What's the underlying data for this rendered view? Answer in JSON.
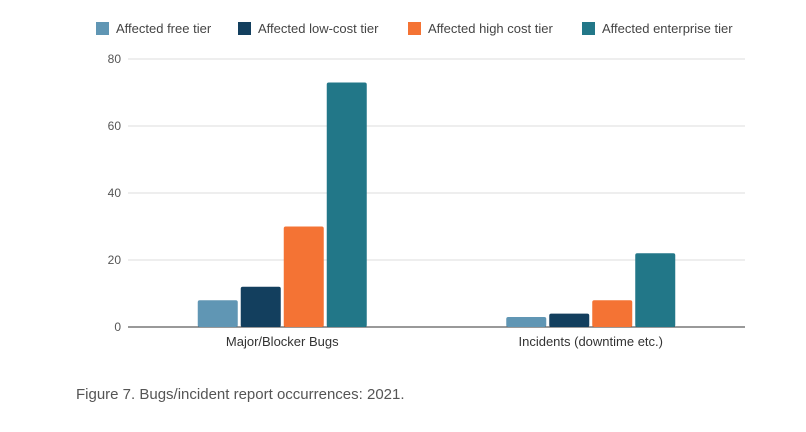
{
  "caption": "Figure 7. Bugs/incident report occurrences: 2021.",
  "chart_data": {
    "type": "bar",
    "title": "",
    "xlabel": "",
    "ylabel": "",
    "categories": [
      "Major/Blocker Bugs",
      "Incidents (downtime etc.)"
    ],
    "series": [
      {
        "name": "Affected free tier",
        "color": "#6096B4",
        "values": [
          8,
          3
        ]
      },
      {
        "name": "Affected low-cost tier",
        "color": "#133F5E",
        "values": [
          12,
          4
        ]
      },
      {
        "name": "Affected high cost tier",
        "color": "#F47334",
        "values": [
          30,
          8
        ]
      },
      {
        "name": "Affected enterprise tier",
        "color": "#227788",
        "values": [
          73,
          22
        ]
      }
    ],
    "ylim": [
      0,
      80
    ],
    "yticks": [
      0,
      20,
      40,
      60,
      80
    ],
    "grid": true,
    "legend_position": "top"
  }
}
